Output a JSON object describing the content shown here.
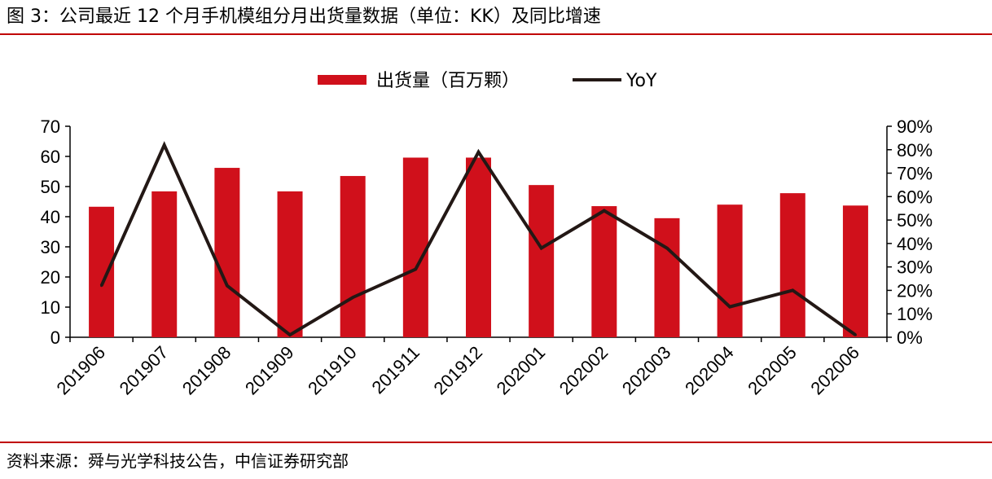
{
  "header": {
    "title": "图 3：公司最近 12 个月手机模组分月出货量数据（单位：KK）及同比增速"
  },
  "footer": {
    "source": "资料来源：舜与光学科技公告，中信证券研究部"
  },
  "colors": {
    "bar": "#d0101b",
    "line": "#231815",
    "rule": "#c00000"
  },
  "chart_data": {
    "type": "bar",
    "categories": [
      "201906",
      "201907",
      "201908",
      "201909",
      "201910",
      "201911",
      "201912",
      "202001",
      "202002",
      "202003",
      "202004",
      "202005",
      "202006"
    ],
    "series": [
      {
        "name": "出货量（百万颗）",
        "type": "bar",
        "axis": "left",
        "values": [
          43.3,
          48.4,
          56.2,
          48.4,
          53.5,
          59.6,
          59.6,
          50.5,
          43.5,
          39.5,
          44.0,
          47.8,
          43.7
        ]
      },
      {
        "name": "YoY",
        "type": "line",
        "axis": "right",
        "values": [
          0.22,
          0.82,
          0.22,
          0.01,
          0.17,
          0.29,
          0.79,
          0.38,
          0.54,
          0.38,
          0.13,
          0.2,
          0.01
        ]
      }
    ],
    "left_axis": {
      "min": 0,
      "max": 70,
      "ticks": [
        "0",
        "10",
        "20",
        "30",
        "40",
        "50",
        "60",
        "70"
      ]
    },
    "right_axis": {
      "min": 0,
      "max": 0.9,
      "ticks": [
        "0%",
        "10%",
        "20%",
        "30%",
        "40%",
        "50%",
        "60%",
        "70%",
        "80%",
        "90%"
      ]
    },
    "legend_position": "top-center",
    "grid": false
  }
}
